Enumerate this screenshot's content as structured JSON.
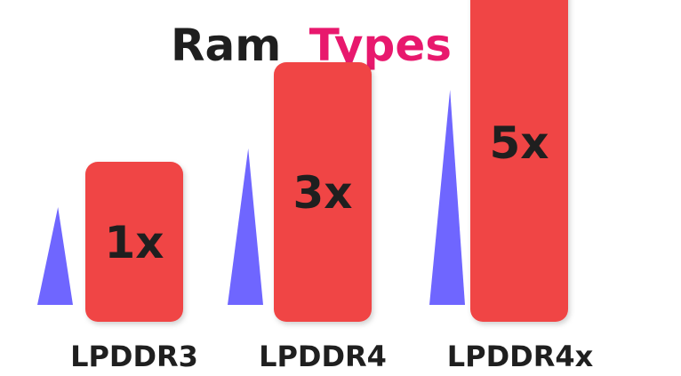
{
  "chart_data": {
    "type": "bar",
    "title_parts": [
      "Ram",
      "Types"
    ],
    "categories": [
      "LPDDR3",
      "LPDDR4",
      "LPDDR4x"
    ],
    "values": [
      1,
      3,
      5
    ],
    "value_labels": [
      "1x",
      "3x",
      "5x"
    ],
    "colors": {
      "title_primary": "#1f1f1f",
      "title_accent": "#e8186d",
      "bar": "#f04545",
      "triangle": "#6f66ff",
      "label": "#1f1f1f"
    }
  }
}
